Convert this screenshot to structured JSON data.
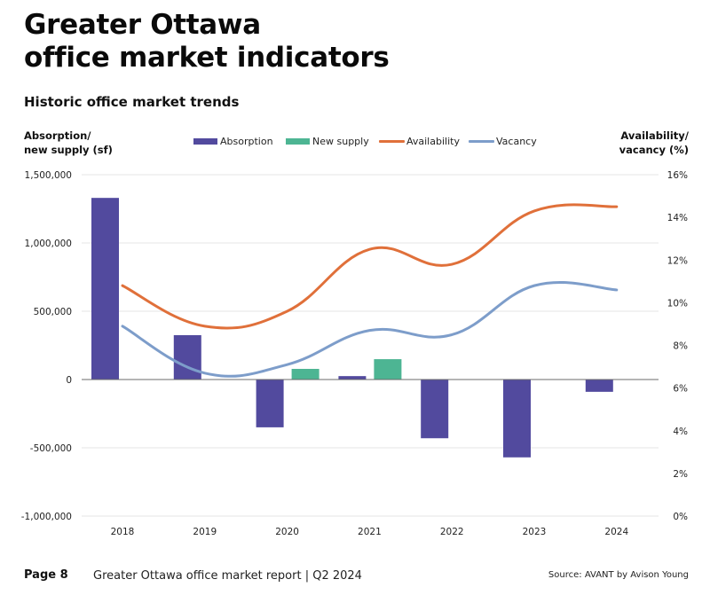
{
  "page": {
    "title_line1": "Greater Ottawa",
    "title_line2": "office market indicators",
    "subtitle": "Historic office market trends",
    "left_axis_title_line1": "Absorption/",
    "left_axis_title_line2": "new supply (sf)",
    "right_axis_title_line1": "Availability/",
    "right_axis_title_line2": "vacancy (%)",
    "footer_page": "Page 8",
    "footer_report": "Greater Ottawa office market report | Q2 2024",
    "footer_source": "Source: AVANT by Avison Young"
  },
  "chart_data": {
    "type": "bar+line",
    "title": "Historic office market trends",
    "categories": [
      "2018",
      "2019",
      "2020",
      "2021",
      "2022",
      "2023",
      "2024"
    ],
    "left_axis": {
      "label": "Absorption/ new supply (sf)",
      "ylim": [
        -1000000,
        1500000
      ],
      "ticks": [
        1500000,
        1000000,
        500000,
        0,
        -500000,
        -1000000
      ],
      "tick_labels": [
        "1,500,000",
        "1,000,000",
        "500,000",
        "0",
        "-500,000",
        "-1,000,000"
      ]
    },
    "right_axis": {
      "label": "Availability/ vacancy (%)",
      "ylim": [
        0,
        16
      ],
      "ticks": [
        16,
        14,
        12,
        10,
        8,
        6,
        4,
        2,
        0
      ],
      "tick_labels": [
        "16%",
        "14%",
        "12%",
        "10%",
        "8%",
        "6%",
        "4%",
        "2%",
        "0%"
      ]
    },
    "grid": true,
    "legend_position": "top-center",
    "series": [
      {
        "name": "Absorption",
        "type": "bar",
        "axis": "left",
        "color": "#524a9e",
        "values": [
          1330000,
          325000,
          -350000,
          25000,
          -430000,
          -570000,
          -90000
        ]
      },
      {
        "name": "New supply",
        "type": "bar",
        "axis": "left",
        "color": "#4db593",
        "values": [
          0,
          0,
          78000,
          149000,
          0,
          0,
          0
        ]
      },
      {
        "name": "Availability",
        "type": "line",
        "axis": "right",
        "color": "#e0703a",
        "values": [
          10.8,
          8.9,
          9.6,
          12.5,
          11.8,
          14.3,
          14.5
        ]
      },
      {
        "name": "Vacancy",
        "type": "line",
        "axis": "right",
        "color": "#7d9dca",
        "values": [
          8.9,
          6.7,
          7.1,
          8.7,
          8.5,
          10.8,
          10.6
        ]
      }
    ]
  }
}
